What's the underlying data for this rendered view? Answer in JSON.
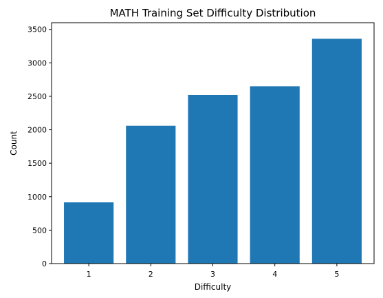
{
  "chart_data": {
    "type": "bar",
    "title": "MATH Training Set Difficulty Distribution",
    "xlabel": "Difficulty",
    "ylabel": "Count",
    "categories": [
      "1",
      "2",
      "3",
      "4",
      "5"
    ],
    "values": [
      915,
      2060,
      2520,
      2650,
      3360
    ],
    "ylim": [
      0,
      3600
    ],
    "yticks": [
      0,
      500,
      1000,
      1500,
      2000,
      2500,
      3000,
      3500
    ],
    "grid": false,
    "bar_color": "#1f77b4"
  }
}
